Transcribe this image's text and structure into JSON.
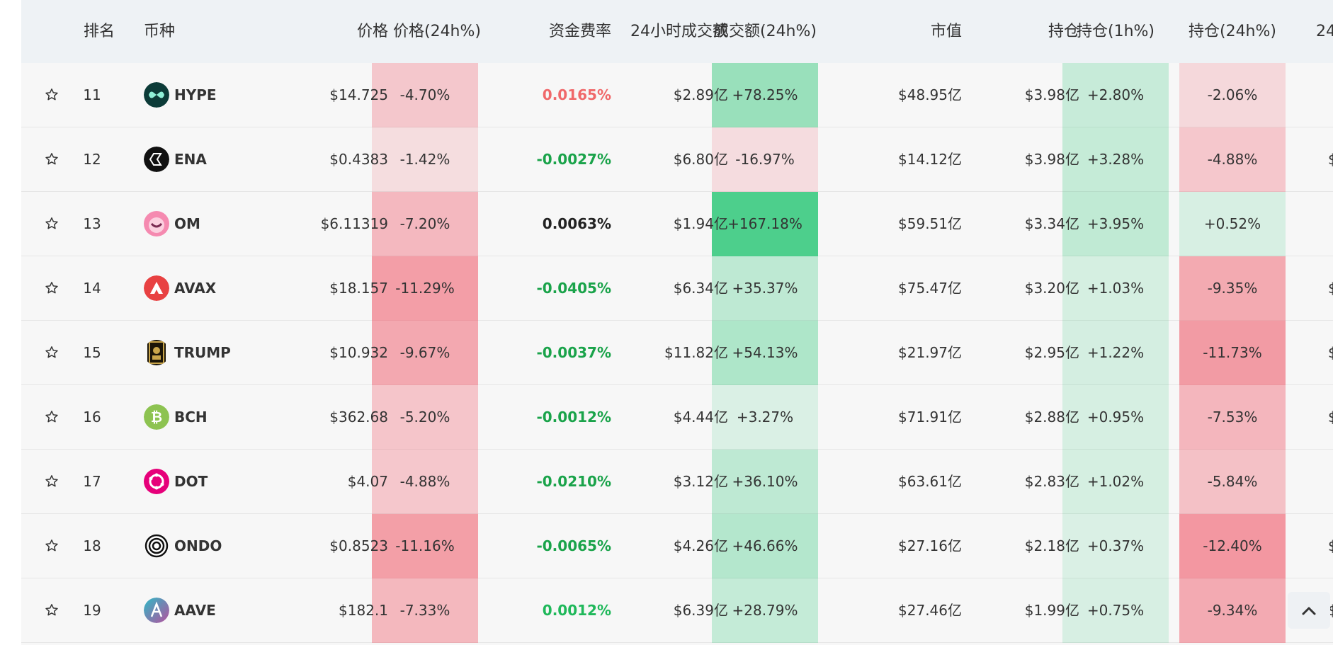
{
  "headers": {
    "rank": "排名",
    "coin": "币种",
    "price": "价格",
    "price_change": "价格(24h%)",
    "funding_rate": "资金费率",
    "volume_24h": "24小时成交额",
    "volume_change": "成交额(24h%)",
    "market_cap": "市值",
    "open_interest": "持仓",
    "oi_1h": "持仓(1h%)",
    "oi_24h": "持仓(24h%)",
    "next_partial": "24"
  },
  "rows": [
    {
      "rank": "11",
      "symbol": "HYPE",
      "icon": "hype-icon",
      "price": "$14.725",
      "price_change": "-4.70%",
      "funding_rate": "0.0165%",
      "funding_color": "#f0686a",
      "volume": "$2.89亿",
      "volume_change": "+78.25%",
      "market_cap": "$48.95亿",
      "oi": "$3.98亿",
      "oi_1h": "+2.80%",
      "oi_24h": "-2.06%",
      "edge": ""
    },
    {
      "rank": "12",
      "symbol": "ENA",
      "icon": "ena-icon",
      "price": "$0.4383",
      "price_change": "-1.42%",
      "funding_rate": "-0.0027%",
      "funding_color": "#1aa34a",
      "volume": "$6.80亿",
      "volume_change": "-16.97%",
      "market_cap": "$14.12亿",
      "oi": "$3.98亿",
      "oi_1h": "+3.28%",
      "oi_24h": "-4.88%",
      "edge": "$"
    },
    {
      "rank": "13",
      "symbol": "OM",
      "icon": "om-icon",
      "price": "$6.11319",
      "price_change": "-7.20%",
      "funding_rate": "0.0063%",
      "funding_color": "#222222",
      "volume": "$1.94亿",
      "volume_change": "+167.18%",
      "market_cap": "$59.51亿",
      "oi": "$3.34亿",
      "oi_1h": "+3.95%",
      "oi_24h": "+0.52%",
      "edge": ""
    },
    {
      "rank": "14",
      "symbol": "AVAX",
      "icon": "avax-icon",
      "price": "$18.157",
      "price_change": "-11.29%",
      "funding_rate": "-0.0405%",
      "funding_color": "#1aa34a",
      "volume": "$6.34亿",
      "volume_change": "+35.37%",
      "market_cap": "$75.47亿",
      "oi": "$3.20亿",
      "oi_1h": "+1.03%",
      "oi_24h": "-9.35%",
      "edge": "$"
    },
    {
      "rank": "15",
      "symbol": "TRUMP",
      "icon": "trump-icon",
      "price": "$10.932",
      "price_change": "-9.67%",
      "funding_rate": "-0.0037%",
      "funding_color": "#1aa34a",
      "volume": "$11.82亿",
      "volume_change": "+54.13%",
      "market_cap": "$21.97亿",
      "oi": "$2.95亿",
      "oi_1h": "+1.22%",
      "oi_24h": "-11.73%",
      "edge": "$"
    },
    {
      "rank": "16",
      "symbol": "BCH",
      "icon": "bch-icon",
      "price": "$362.68",
      "price_change": "-5.20%",
      "funding_rate": "-0.0012%",
      "funding_color": "#1aa34a",
      "volume": "$4.44亿",
      "volume_change": "+3.27%",
      "market_cap": "$71.91亿",
      "oi": "$2.88亿",
      "oi_1h": "+0.95%",
      "oi_24h": "-7.53%",
      "edge": "$"
    },
    {
      "rank": "17",
      "symbol": "DOT",
      "icon": "dot-icon",
      "price": "$4.07",
      "price_change": "-4.88%",
      "funding_rate": "-0.0210%",
      "funding_color": "#1aa34a",
      "volume": "$3.12亿",
      "volume_change": "+36.10%",
      "market_cap": "$63.61亿",
      "oi": "$2.83亿",
      "oi_1h": "+1.02%",
      "oi_24h": "-5.84%",
      "edge": ""
    },
    {
      "rank": "18",
      "symbol": "ONDO",
      "icon": "ondo-icon",
      "price": "$0.8523",
      "price_change": "-11.16%",
      "funding_rate": "-0.0065%",
      "funding_color": "#1aa34a",
      "volume": "$4.26亿",
      "volume_change": "+46.66%",
      "market_cap": "$27.16亿",
      "oi": "$2.18亿",
      "oi_1h": "+0.37%",
      "oi_24h": "-12.40%",
      "edge": "$"
    },
    {
      "rank": "19",
      "symbol": "AAVE",
      "icon": "aave-icon",
      "price": "$182.1",
      "price_change": "-7.33%",
      "funding_rate": "0.0012%",
      "funding_color": "#1fb85a",
      "volume": "$6.39亿",
      "volume_change": "+28.79%",
      "market_cap": "$27.46亿",
      "oi": "$1.99亿",
      "oi_1h": "+0.75%",
      "oi_24h": "-9.34%",
      "edge": "$"
    }
  ],
  "colors": {
    "positive_text": "#1aa34a",
    "negative_text": "#f0686a",
    "heat_positive": "#1ec36e",
    "heat_negative": "#f06a78"
  },
  "scroll_top_icon": "chevron-up-icon"
}
